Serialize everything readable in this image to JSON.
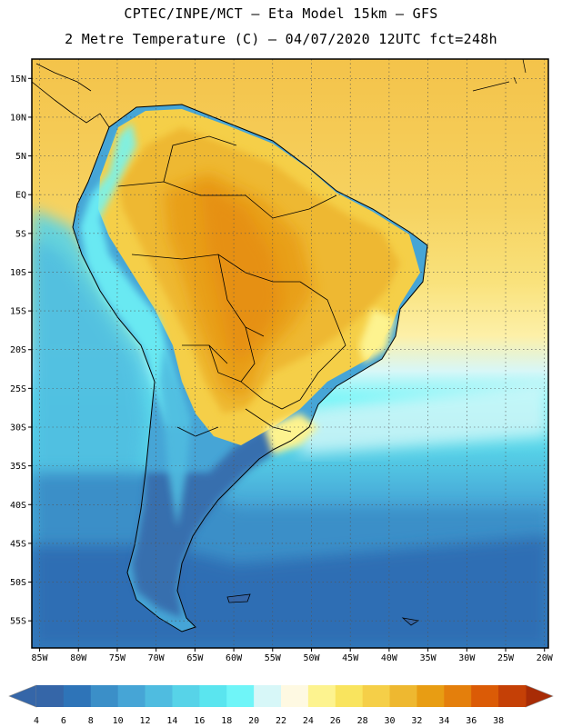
{
  "header": {
    "line1": "CPTEC/INPE/MCT –  Eta Model 15km – GFS",
    "line2": "2 Metre Temperature (C) – 04/07/2020 12UTC fct=248h"
  },
  "map": {
    "lat_labels": [
      "15N",
      "10N",
      "5N",
      "EQ",
      "5S",
      "10S",
      "15S",
      "20S",
      "25S",
      "30S",
      "35S",
      "40S",
      "45S",
      "50S",
      "55S"
    ],
    "lon_labels": [
      "85W",
      "80W",
      "75W",
      "70W",
      "65W",
      "60W",
      "55W",
      "50W",
      "45W",
      "40W",
      "35W",
      "30W",
      "25W",
      "20W"
    ],
    "lat_range": [
      17.5,
      -58.5
    ],
    "lon_range": [
      -86,
      -19.5
    ]
  },
  "colorbar": {
    "labels": [
      "4",
      "6",
      "8",
      "10",
      "12",
      "14",
      "16",
      "18",
      "20",
      "22",
      "24",
      "26",
      "28",
      "30",
      "32",
      "34",
      "36",
      "38"
    ],
    "colors": [
      "#3566a8",
      "#2e74b8",
      "#3b8fc8",
      "#46a5d6",
      "#4fbce0",
      "#57d3e8",
      "#5ae5ef",
      "#6ff5f8",
      "#d7f7f8",
      "#fef9e2",
      "#fdf38f",
      "#f9e45e",
      "#f5cf48",
      "#eeb830",
      "#e89d13",
      "#e47f0c",
      "#db5b06",
      "#c54006"
    ]
  }
}
